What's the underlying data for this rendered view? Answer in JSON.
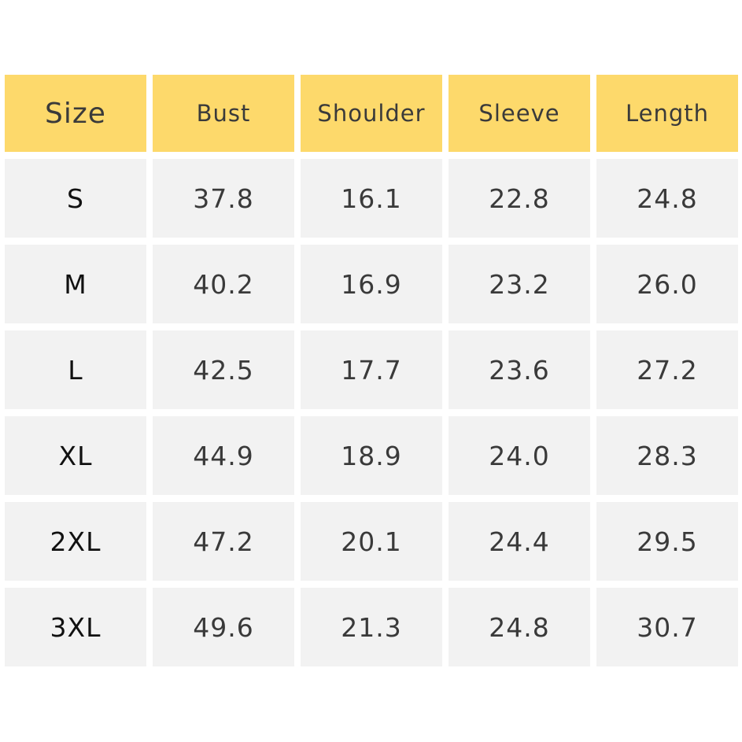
{
  "table": {
    "headers": [
      "Size",
      "Bust",
      "Shoulder",
      "Sleeve",
      "Length"
    ],
    "rows": [
      [
        "S",
        "37.8",
        "16.1",
        "22.8",
        "24.8"
      ],
      [
        "M",
        "40.2",
        "16.9",
        "23.2",
        "26.0"
      ],
      [
        "L",
        "42.5",
        "17.7",
        "23.6",
        "27.2"
      ],
      [
        "XL",
        "44.9",
        "18.9",
        "24.0",
        "28.3"
      ],
      [
        "2XL",
        "47.2",
        "20.1",
        "24.4",
        "29.5"
      ],
      [
        "3XL",
        "49.6",
        "21.3",
        "24.8",
        "30.7"
      ]
    ]
  }
}
